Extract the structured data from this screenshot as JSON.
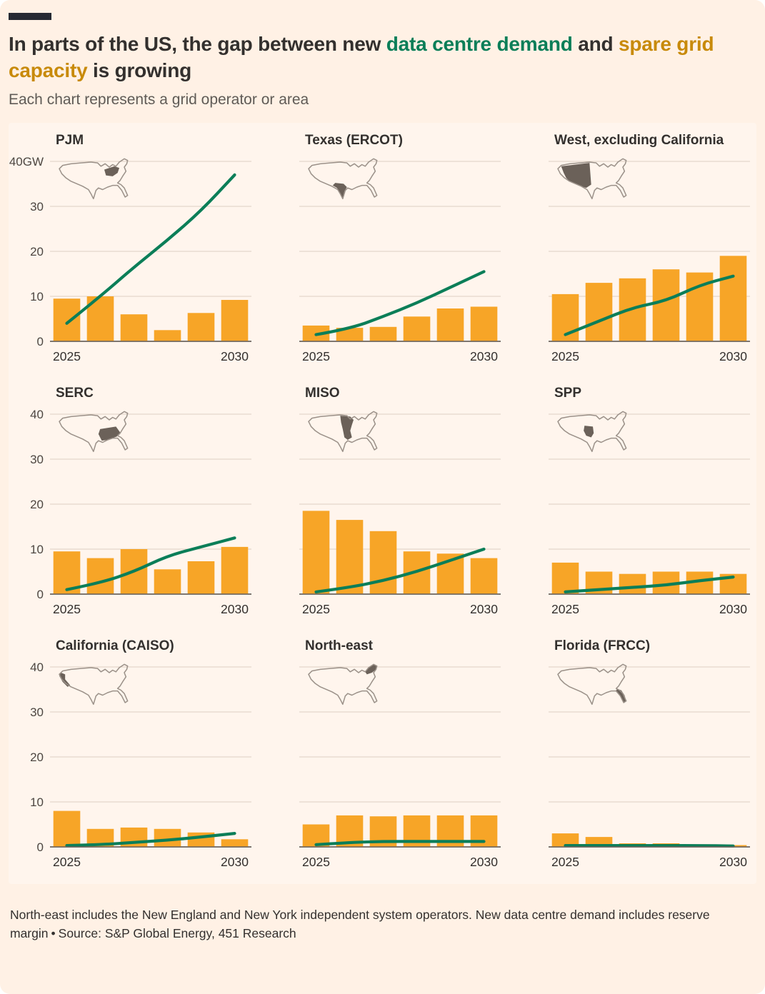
{
  "colors": {
    "background": "#FFF1E5",
    "bar": "#F7A527",
    "line": "#0B7E58",
    "title_green": "#0B7E58",
    "title_gold": "#C88A0A",
    "text_dark": "#33302E",
    "text_muted": "#5F5B56",
    "gridline": "#DDD0C2",
    "baseline": "#6B645E",
    "axis_text": "#4D4742",
    "x_label_text": "#33302E",
    "map_outline": "#9B9189",
    "map_region": "#6B6159",
    "brand_bar": "#262A33"
  },
  "header": {
    "title_parts": [
      {
        "text": "In parts of the US, the gap between new ",
        "tone": "dark"
      },
      {
        "text": "data centre demand",
        "tone": "green"
      },
      {
        "text": " and ",
        "tone": "dark"
      },
      {
        "text": "spare grid capacity",
        "tone": "gold"
      },
      {
        "text": " is growing",
        "tone": "dark"
      }
    ],
    "subtitle": "Each chart represents a grid operator or area"
  },
  "axis": {
    "y_ticks": [
      0,
      10,
      20,
      30,
      40
    ],
    "ymax": 40,
    "x_first": "2025",
    "x_last": "2030"
  },
  "chart_data": [
    {
      "title": "PJM",
      "region": "pjm",
      "type": "bar+line",
      "x": [
        2025,
        2026,
        2027,
        2028,
        2029,
        2030
      ],
      "ylim": [
        0,
        40
      ],
      "show_y_labels": true,
      "y_axis_top_label": "40GW",
      "bar_series": {
        "name": "Spare grid capacity (GW)",
        "values": [
          9.5,
          10,
          6,
          2.5,
          6.3,
          9.2
        ]
      },
      "line_series": {
        "name": "New data centre demand (GW)",
        "values": [
          4,
          10,
          16.5,
          22.5,
          29,
          37
        ]
      }
    },
    {
      "title": "Texas (ERCOT)",
      "region": "ercot",
      "type": "bar+line",
      "x": [
        2025,
        2026,
        2027,
        2028,
        2029,
        2030
      ],
      "ylim": [
        0,
        40
      ],
      "show_y_labels": false,
      "bar_series": {
        "name": "Spare grid capacity (GW)",
        "values": [
          3.5,
          3,
          3.2,
          5.5,
          7.3,
          7.7
        ]
      },
      "line_series": {
        "name": "New data centre demand (GW)",
        "values": [
          1.5,
          2.8,
          5.5,
          8.5,
          12,
          15.5
        ]
      }
    },
    {
      "title": "West, excluding California",
      "region": "west-ex-ca",
      "type": "bar+line",
      "x": [
        2025,
        2026,
        2027,
        2028,
        2029,
        2030
      ],
      "ylim": [
        0,
        40
      ],
      "show_y_labels": false,
      "bar_series": {
        "name": "Spare grid capacity (GW)",
        "values": [
          10.5,
          13,
          14,
          16,
          15.3,
          19
        ]
      },
      "line_series": {
        "name": "New data centre demand (GW)",
        "values": [
          1.5,
          4.5,
          7.5,
          9,
          12.5,
          14.5
        ]
      }
    },
    {
      "title": "SERC",
      "region": "serc",
      "type": "bar+line",
      "x": [
        2025,
        2026,
        2027,
        2028,
        2029,
        2030
      ],
      "ylim": [
        0,
        40
      ],
      "show_y_labels": true,
      "y_axis_top_label": "40",
      "bar_series": {
        "name": "Spare grid capacity (GW)",
        "values": [
          9.5,
          8,
          10,
          5.5,
          7.3,
          10.5
        ]
      },
      "line_series": {
        "name": "New data centre demand (GW)",
        "values": [
          1,
          2.5,
          5,
          8.5,
          10.5,
          12.5
        ]
      }
    },
    {
      "title": "MISO",
      "region": "miso",
      "type": "bar+line",
      "x": [
        2025,
        2026,
        2027,
        2028,
        2029,
        2030
      ],
      "ylim": [
        0,
        40
      ],
      "show_y_labels": false,
      "bar_series": {
        "name": "Spare grid capacity (GW)",
        "values": [
          18.5,
          16.5,
          14,
          9.5,
          9,
          8
        ]
      },
      "line_series": {
        "name": "New data centre demand (GW)",
        "values": [
          0.5,
          1.5,
          3,
          5,
          7.5,
          10
        ]
      }
    },
    {
      "title": "SPP",
      "region": "spp",
      "type": "bar+line",
      "x": [
        2025,
        2026,
        2027,
        2028,
        2029,
        2030
      ],
      "ylim": [
        0,
        40
      ],
      "show_y_labels": false,
      "bar_series": {
        "name": "Spare grid capacity (GW)",
        "values": [
          7,
          5,
          4.5,
          5,
          5,
          4.5
        ]
      },
      "line_series": {
        "name": "New data centre demand (GW)",
        "values": [
          0.5,
          1,
          1.5,
          2,
          3,
          3.8
        ]
      }
    },
    {
      "title": "California (CAISO)",
      "region": "caiso",
      "type": "bar+line",
      "x": [
        2025,
        2026,
        2027,
        2028,
        2029,
        2030
      ],
      "ylim": [
        0,
        40
      ],
      "show_y_labels": true,
      "y_axis_top_label": "40",
      "bar_series": {
        "name": "Spare grid capacity (GW)",
        "values": [
          8,
          4,
          4.3,
          4,
          3.2,
          1.7
        ]
      },
      "line_series": {
        "name": "New data centre demand (GW)",
        "values": [
          0.3,
          0.5,
          1,
          1.5,
          2.2,
          3
        ]
      }
    },
    {
      "title": "North-east",
      "region": "northeast",
      "type": "bar+line",
      "x": [
        2025,
        2026,
        2027,
        2028,
        2029,
        2030
      ],
      "ylim": [
        0,
        40
      ],
      "show_y_labels": false,
      "bar_series": {
        "name": "Spare grid capacity (GW)",
        "values": [
          5,
          7,
          6.8,
          7,
          7,
          7
        ]
      },
      "line_series": {
        "name": "New data centre demand (GW)",
        "values": [
          0.5,
          1,
          1.2,
          1.2,
          1.2,
          1.2
        ]
      }
    },
    {
      "title": "Florida (FRCC)",
      "region": "frcc",
      "type": "bar+line",
      "x": [
        2025,
        2026,
        2027,
        2028,
        2029,
        2030
      ],
      "ylim": [
        0,
        40
      ],
      "show_y_labels": false,
      "bar_series": {
        "name": "Spare grid capacity (GW)",
        "values": [
          3,
          2.2,
          0.8,
          0.8,
          0.5,
          0.4
        ]
      },
      "line_series": {
        "name": "New data centre demand (GW)",
        "values": [
          0.3,
          0.3,
          0.3,
          0.3,
          0.3,
          0.2
        ]
      }
    }
  ],
  "footer": {
    "note": "North-east includes the New England and New York independent system operators. New data centre demand includes reserve margin",
    "source": "Source: S&P Global Energy, 451 Research"
  }
}
